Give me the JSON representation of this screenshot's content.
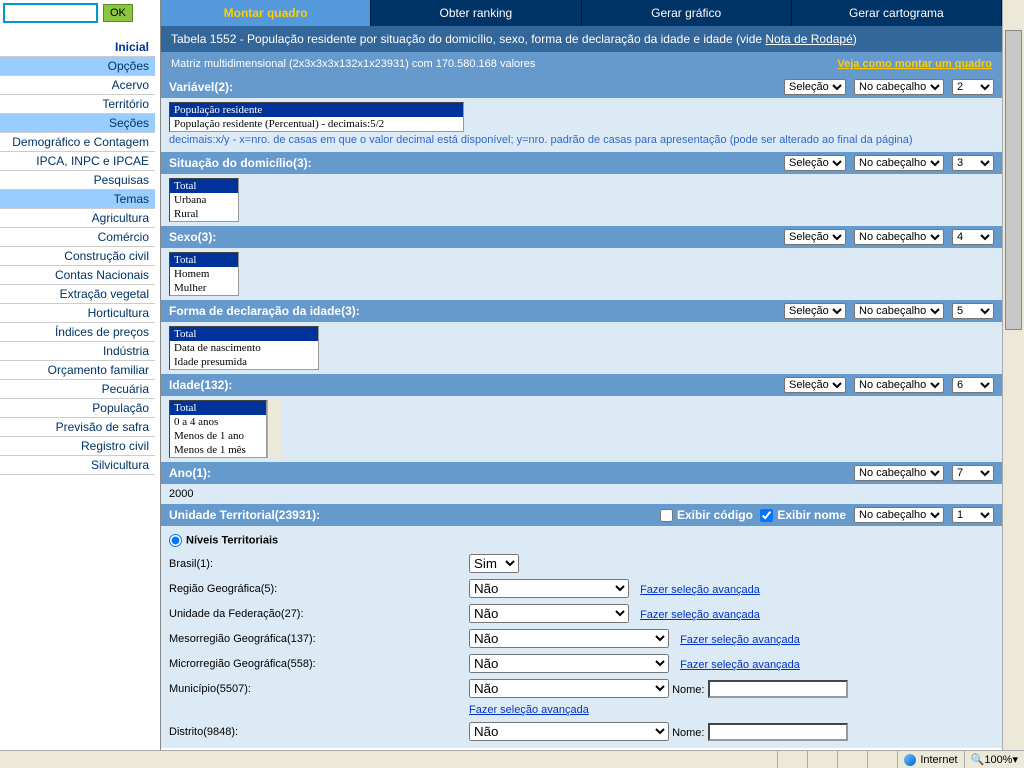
{
  "search": {
    "placeholder": "",
    "ok": "OK"
  },
  "sidebar": [
    {
      "label": "Inicial",
      "hl": false,
      "cls": "inicial"
    },
    {
      "label": "Opções",
      "hl": true
    },
    {
      "label": "Acervo",
      "hl": false
    },
    {
      "label": "Território",
      "hl": false
    },
    {
      "label": "Seções",
      "hl": true
    },
    {
      "label": "Demográfico e Contagem",
      "hl": false
    },
    {
      "label": "IPCA, INPC e IPCAE",
      "hl": false
    },
    {
      "label": "Pesquisas",
      "hl": false
    },
    {
      "label": "Temas",
      "hl": true
    },
    {
      "label": "Agricultura",
      "hl": false
    },
    {
      "label": "Comércio",
      "hl": false
    },
    {
      "label": "Construção civil",
      "hl": false
    },
    {
      "label": "Contas Nacionais",
      "hl": false
    },
    {
      "label": "Extração vegetal",
      "hl": false
    },
    {
      "label": "Horticultura",
      "hl": false
    },
    {
      "label": "Índices de preços",
      "hl": false
    },
    {
      "label": "Indústria",
      "hl": false
    },
    {
      "label": "Orçamento familiar",
      "hl": false
    },
    {
      "label": "Pecuária",
      "hl": false
    },
    {
      "label": "População",
      "hl": false
    },
    {
      "label": "Previsão de safra",
      "hl": false
    },
    {
      "label": "Registro civil",
      "hl": false
    },
    {
      "label": "Silvicultura",
      "hl": false
    }
  ],
  "tabs": [
    {
      "label": "Montar quadro",
      "active": true
    },
    {
      "label": "Obter ranking",
      "active": false
    },
    {
      "label": "Gerar gráfico",
      "active": false
    },
    {
      "label": "Gerar cartograma",
      "active": false
    }
  ],
  "title": "Tabela 1552 - População residente por situação do domicílio, sexo, forma de declaração da idade e idade (vide ",
  "title_link": "Nota de Rodapé",
  "title_tail": ")",
  "matrix": "Matriz multidimensional (2x3x3x3x132x1x23931) com 170.580.168 valores",
  "howto": "Veja como montar um quadro",
  "common": {
    "selecao": "Seleção",
    "nocab": "No cabeçalho",
    "sim": "Sim",
    "nao": "Não",
    "adv": "Fazer seleção avançada",
    "nome": "Nome:",
    "exib_cod": "Exibir código",
    "exib_nome": "Exibir nome"
  },
  "sections": {
    "variavel": {
      "title": "Variável(2):",
      "num": "2",
      "opts": [
        "População residente",
        "População residente (Percentual) - decimais:5/2"
      ],
      "hint": "decimais:x/y - x=nro. de casas em que o valor decimal está disponível; y=nro. padrão de casas para apresentação (pode ser alterado ao final da página)"
    },
    "situacao": {
      "title": "Situação do domicílio(3):",
      "num": "3",
      "opts": [
        "Total",
        "Urbana",
        "Rural"
      ]
    },
    "sexo": {
      "title": "Sexo(3):",
      "num": "4",
      "opts": [
        "Total",
        "Homem",
        "Mulher"
      ]
    },
    "forma": {
      "title": "Forma de declaração da idade(3):",
      "num": "5",
      "opts": [
        "Total",
        "Data de nascimento",
        "Idade presumida"
      ]
    },
    "idade": {
      "title": "Idade(132):",
      "num": "6",
      "opts": [
        "Total",
        "0 a 4 anos",
        "Menos de 1 ano",
        "Menos de 1 mês"
      ]
    },
    "ano": {
      "title": "Ano(1):",
      "num": "7",
      "value": "2000"
    },
    "ut": {
      "title": "Unidade Territorial(23931):",
      "num": "1"
    }
  },
  "niveis": {
    "header": "Níveis Territoriais",
    "rows": [
      {
        "label": "Brasil(1):",
        "type": "simple"
      },
      {
        "label": "Região Geográfica(5):",
        "type": "med"
      },
      {
        "label": "Unidade da Federação(27):",
        "type": "med"
      },
      {
        "label": "Mesorregião Geográfica(137):",
        "type": "wide"
      },
      {
        "label": "Microrregião Geográfica(558):",
        "type": "wide"
      },
      {
        "label": "Município(5507):",
        "type": "nome"
      },
      {
        "label": "Distrito(9848):",
        "type": "nome"
      }
    ]
  },
  "status": {
    "internet": "Internet",
    "zoom": "100%"
  }
}
